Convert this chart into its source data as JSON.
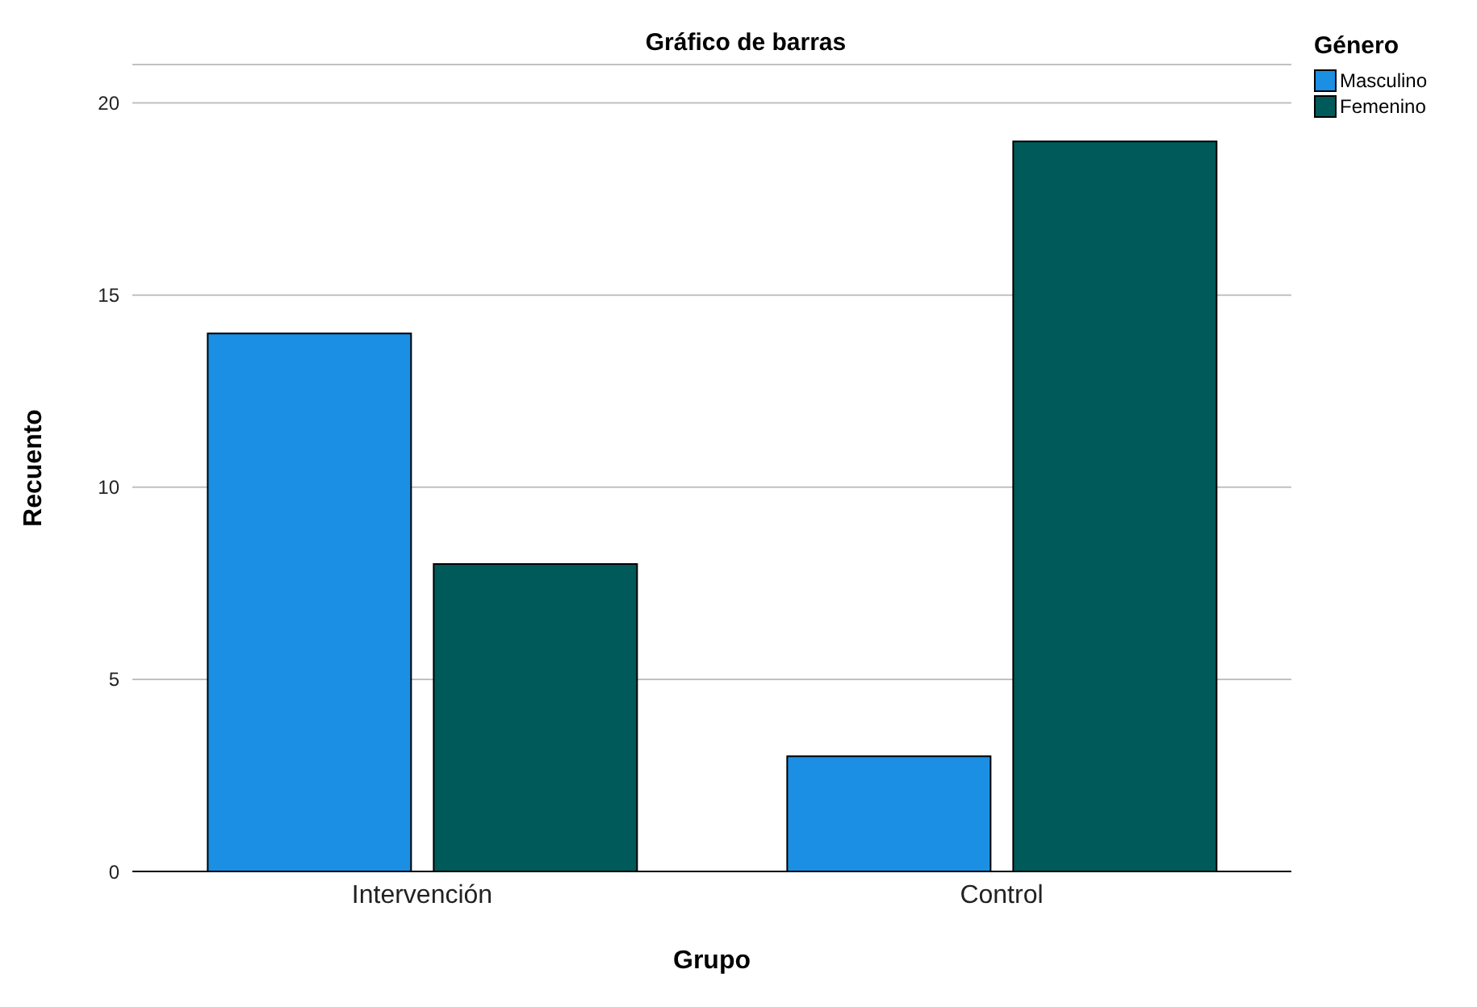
{
  "chart_data": {
    "type": "bar",
    "title": "Gráfico de barras",
    "xlabel": "Grupo",
    "ylabel": "Recuento",
    "legend_title": "Género",
    "categories": [
      "Intervención",
      "Control"
    ],
    "series": [
      {
        "name": "Masculino",
        "color": "#1a8fe3",
        "values": [
          14,
          3
        ]
      },
      {
        "name": "Femenino",
        "color": "#005a5a",
        "values": [
          8,
          19
        ]
      }
    ],
    "ylim": [
      0,
      21
    ],
    "yticks": [
      0,
      5,
      10,
      15,
      20
    ],
    "grid": "y",
    "legend": "top right"
  }
}
